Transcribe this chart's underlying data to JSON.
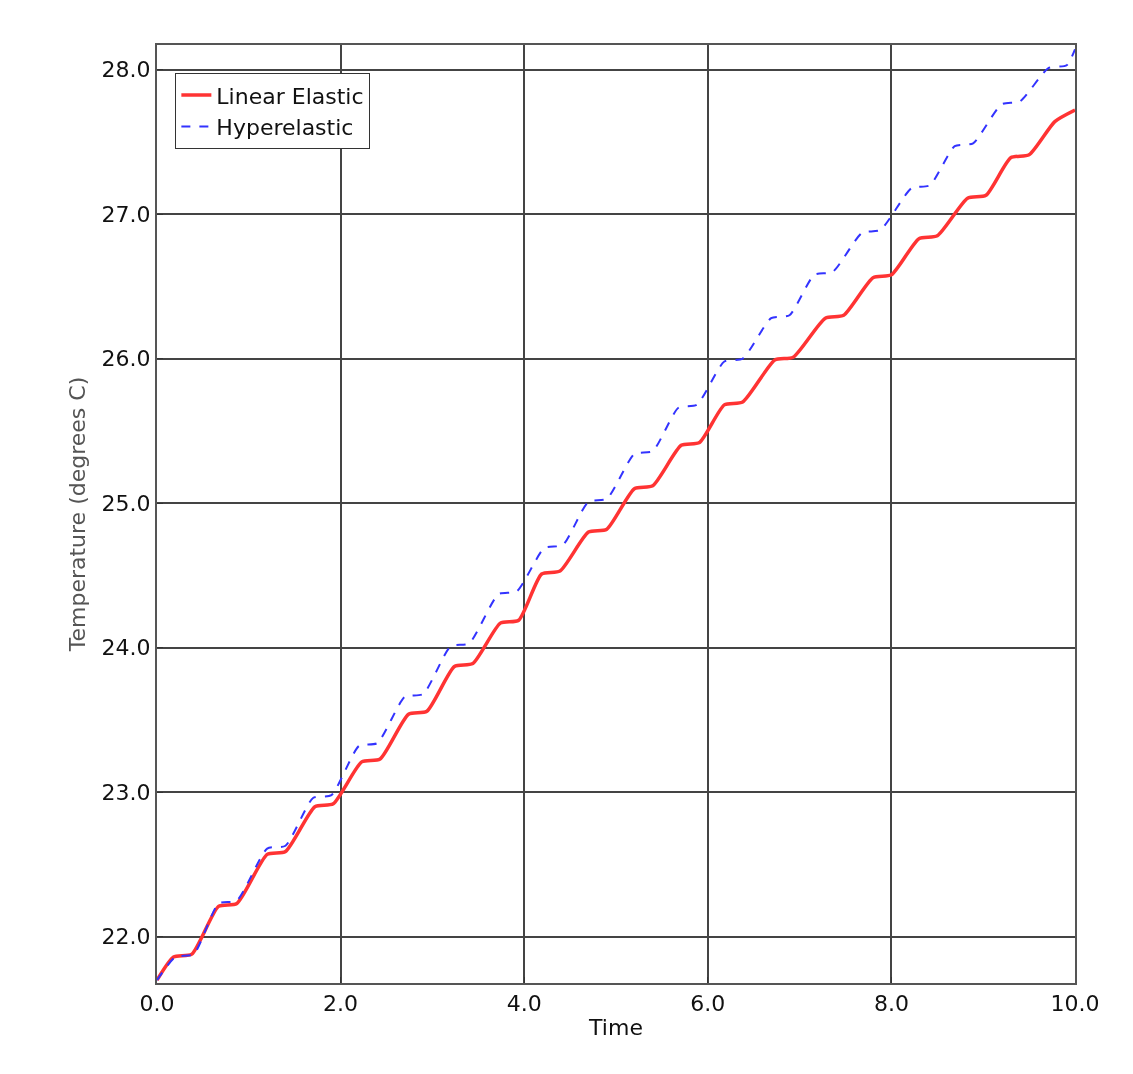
{
  "chart_data": {
    "type": "line",
    "xlabel": "Time",
    "ylabel": "Temperature (degrees C)",
    "xlim": [
      0,
      10
    ],
    "ylim": [
      21.68,
      28.17
    ],
    "xticks": [
      {
        "value": 0,
        "label": "0.0"
      },
      {
        "value": 2,
        "label": "2.0"
      },
      {
        "value": 4,
        "label": "4.0"
      },
      {
        "value": 6,
        "label": "6.0"
      },
      {
        "value": 8,
        "label": "8.0"
      },
      {
        "value": 10,
        "label": "10.0"
      }
    ],
    "yticks": [
      {
        "value": 22,
        "label": "22.0"
      },
      {
        "value": 23,
        "label": "23.0"
      },
      {
        "value": 24,
        "label": "24.0"
      },
      {
        "value": 25,
        "label": "25.0"
      },
      {
        "value": 26,
        "label": "26.0"
      },
      {
        "value": 27,
        "label": "27.0"
      },
      {
        "value": 28,
        "label": "28.0"
      }
    ],
    "grid": true,
    "legend": "top left",
    "marker": "none",
    "series": [
      {
        "name": "Linear Elastic",
        "color": "#ff3333",
        "line_style": "solid",
        "x": [
          0,
          0.18,
          0.38,
          0.67,
          0.87,
          1.2,
          1.4,
          1.72,
          1.92,
          2.23,
          2.43,
          2.74,
          2.94,
          3.24,
          3.44,
          3.74,
          3.94,
          4.19,
          4.39,
          4.7,
          4.9,
          5.2,
          5.4,
          5.71,
          5.91,
          6.18,
          6.38,
          6.73,
          6.93,
          7.28,
          7.48,
          7.8,
          8.0,
          8.3,
          8.5,
          8.83,
          9.03,
          9.3,
          9.5,
          9.78,
          10
        ],
        "values": [
          21.7,
          21.86,
          21.88,
          22.21,
          22.23,
          22.57,
          22.59,
          22.9,
          22.92,
          23.21,
          23.23,
          23.54,
          23.56,
          23.87,
          23.89,
          24.17,
          24.19,
          24.51,
          24.53,
          24.8,
          24.82,
          25.1,
          25.12,
          25.4,
          25.42,
          25.68,
          25.7,
          25.99,
          26.01,
          26.28,
          26.3,
          26.56,
          26.58,
          26.83,
          26.85,
          27.11,
          27.13,
          27.39,
          27.41,
          27.64,
          27.72
        ]
      },
      {
        "name": "Hyperelastic",
        "color": "#3333ff",
        "line_style": "dashed",
        "x": [
          0,
          0.2,
          0.4,
          0.67,
          0.87,
          1.2,
          1.4,
          1.7,
          1.9,
          2.2,
          2.4,
          2.7,
          2.9,
          3.2,
          3.4,
          3.72,
          3.92,
          4.22,
          4.42,
          4.7,
          4.9,
          5.2,
          5.4,
          5.68,
          5.88,
          6.18,
          6.38,
          6.69,
          6.89,
          7.16,
          7.36,
          7.68,
          7.88,
          8.22,
          8.42,
          8.69,
          8.89,
          9.2,
          9.4,
          9.71,
          9.91,
          10
        ],
        "values": [
          21.7,
          21.86,
          21.88,
          22.23,
          22.25,
          22.61,
          22.63,
          22.96,
          22.98,
          23.32,
          23.34,
          23.66,
          23.68,
          24.01,
          24.03,
          24.37,
          24.39,
          24.69,
          24.71,
          25.01,
          25.03,
          25.34,
          25.36,
          25.66,
          25.68,
          25.98,
          26.0,
          26.28,
          26.3,
          26.58,
          26.6,
          26.87,
          26.89,
          27.18,
          27.2,
          27.47,
          27.49,
          27.76,
          27.78,
          28.01,
          28.03,
          28.14
        ]
      }
    ]
  }
}
